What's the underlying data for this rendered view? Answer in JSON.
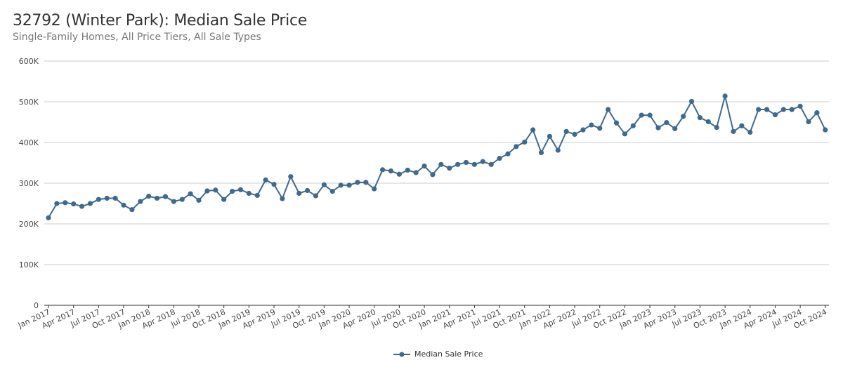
{
  "chart_data": {
    "type": "line",
    "title": "32792 (Winter Park): Median Sale Price",
    "subtitle": "Single-Family Homes, All Price Tiers, All Sale Types",
    "xlabel": "",
    "ylabel": "",
    "ylim": [
      0,
      600000
    ],
    "yticks": [
      0,
      100000,
      200000,
      300000,
      400000,
      500000,
      600000
    ],
    "ytick_labels": [
      "0",
      "100K",
      "200K",
      "300K",
      "400K",
      "500K",
      "600K"
    ],
    "grid": true,
    "legend": "bottom-center",
    "x_start": "Jan 2017",
    "x_tick_labels": [
      "Jan 2017",
      "Apr 2017",
      "Jul 2017",
      "Oct 2017",
      "Jan 2018",
      "Apr 2018",
      "Jul 2018",
      "Oct 2018",
      "Jan 2019",
      "Apr 2019",
      "Jul 2019",
      "Oct 2019",
      "Jan 2020",
      "Apr 2020",
      "Jul 2020",
      "Oct 2020",
      "Jan 2021",
      "Apr 2021",
      "Jul 2021",
      "Oct 2021",
      "Jan 2022",
      "Apr 2022",
      "Jul 2022",
      "Oct 2022",
      "Jan 2023",
      "Apr 2023",
      "Jul 2023",
      "Oct 2023",
      "Jan 2024",
      "Apr 2024",
      "Jul 2024",
      "Oct 2024"
    ],
    "series": [
      {
        "name": "Median Sale Price",
        "color": "#3f6a8f",
        "values": [
          215000,
          250000,
          252000,
          249000,
          243000,
          250000,
          260000,
          263000,
          263000,
          246000,
          235000,
          255000,
          268000,
          263000,
          267000,
          255000,
          260000,
          274000,
          258000,
          281000,
          283000,
          260000,
          280000,
          284000,
          275000,
          270000,
          308000,
          297000,
          262000,
          316000,
          275000,
          282000,
          269000,
          296000,
          280000,
          295000,
          295000,
          302000,
          302000,
          286000,
          333000,
          330000,
          322000,
          332000,
          326000,
          342000,
          321000,
          346000,
          337000,
          346000,
          351000,
          346000,
          353000,
          346000,
          361000,
          372000,
          390000,
          401000,
          431000,
          375000,
          415000,
          381000,
          427000,
          420000,
          431000,
          443000,
          435000,
          481000,
          448000,
          421000,
          441000,
          467000,
          467000,
          436000,
          449000,
          434000,
          464000,
          501000,
          461000,
          451000,
          437000,
          514000,
          427000,
          441000,
          425000,
          481000,
          481000,
          468000,
          481000,
          481000,
          489000,
          451000,
          473000,
          431000
        ]
      }
    ]
  },
  "legend": {
    "label": "Median Sale Price"
  }
}
